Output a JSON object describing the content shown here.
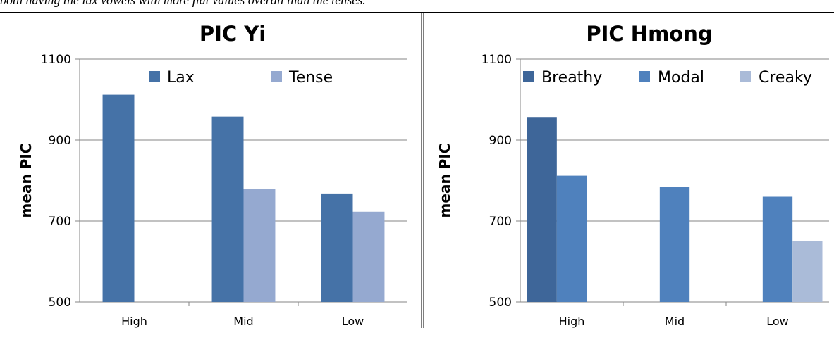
{
  "caption": "both having the lax vowels with more flat values overall than the tenses.",
  "chart_data": [
    {
      "type": "bar",
      "title": "PIC Yi",
      "xlabel": "",
      "ylabel": "mean PIC",
      "ylim": [
        500,
        1100
      ],
      "yticks": [
        500,
        700,
        900,
        1100
      ],
      "grid": true,
      "legend": "top",
      "categories": [
        "High",
        "Mid",
        "Low"
      ],
      "series": [
        {
          "name": "Lax",
          "color": "#4572a7",
          "values": [
            1012,
            958,
            768
          ]
        },
        {
          "name": "Tense",
          "color": "#95a9d0",
          "values": [
            null,
            779,
            723
          ]
        }
      ]
    },
    {
      "type": "bar",
      "title": "PIC  Hmong",
      "xlabel": "",
      "ylabel": "mean PIC",
      "ylim": [
        500,
        1100
      ],
      "yticks": [
        500,
        700,
        900,
        1100
      ],
      "grid": true,
      "legend": "top",
      "categories": [
        "High",
        "Mid",
        "Low"
      ],
      "series": [
        {
          "name": "Breathy",
          "color": "#3e6699",
          "values": [
            957,
            null,
            null
          ]
        },
        {
          "name": "Modal",
          "color": "#4f81bd",
          "values": [
            812,
            784,
            760
          ]
        },
        {
          "name": "Creaky",
          "color": "#aabbd8",
          "values": [
            null,
            null,
            650
          ]
        }
      ]
    }
  ]
}
